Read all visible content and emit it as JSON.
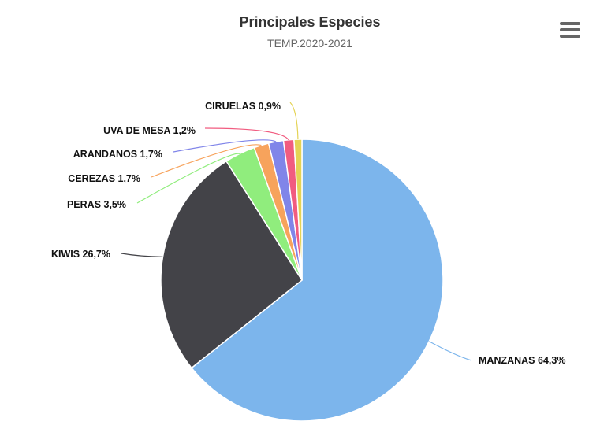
{
  "chart_data": {
    "type": "pie",
    "title": "Principales Especies",
    "subtitle": "TEMP.2020-2021",
    "slices": [
      {
        "name": "MANZANAS",
        "value": 64.3,
        "label": "MANZANAS 64,3%",
        "color": "#7cb5ec"
      },
      {
        "name": "KIWIS",
        "value": 26.7,
        "label": "KIWIS 26,7%",
        "color": "#434348"
      },
      {
        "name": "PERAS",
        "value": 3.5,
        "label": "PERAS 3,5%",
        "color": "#90ed7d"
      },
      {
        "name": "CEREZAS",
        "value": 1.7,
        "label": "CEREZAS 1,7%",
        "color": "#f7a35c"
      },
      {
        "name": "ARANDANOS",
        "value": 1.7,
        "label": "ARANDANOS 1,7%",
        "color": "#8085e9"
      },
      {
        "name": "UVA DE MESA",
        "value": 1.2,
        "label": "UVA DE MESA 1,2%",
        "color": "#f15c80"
      },
      {
        "name": "CIRUELAS",
        "value": 0.9,
        "label": "CIRUELAS 0,9%",
        "color": "#e4d354"
      }
    ]
  },
  "menu": {
    "icon": "hamburger-menu-icon"
  }
}
